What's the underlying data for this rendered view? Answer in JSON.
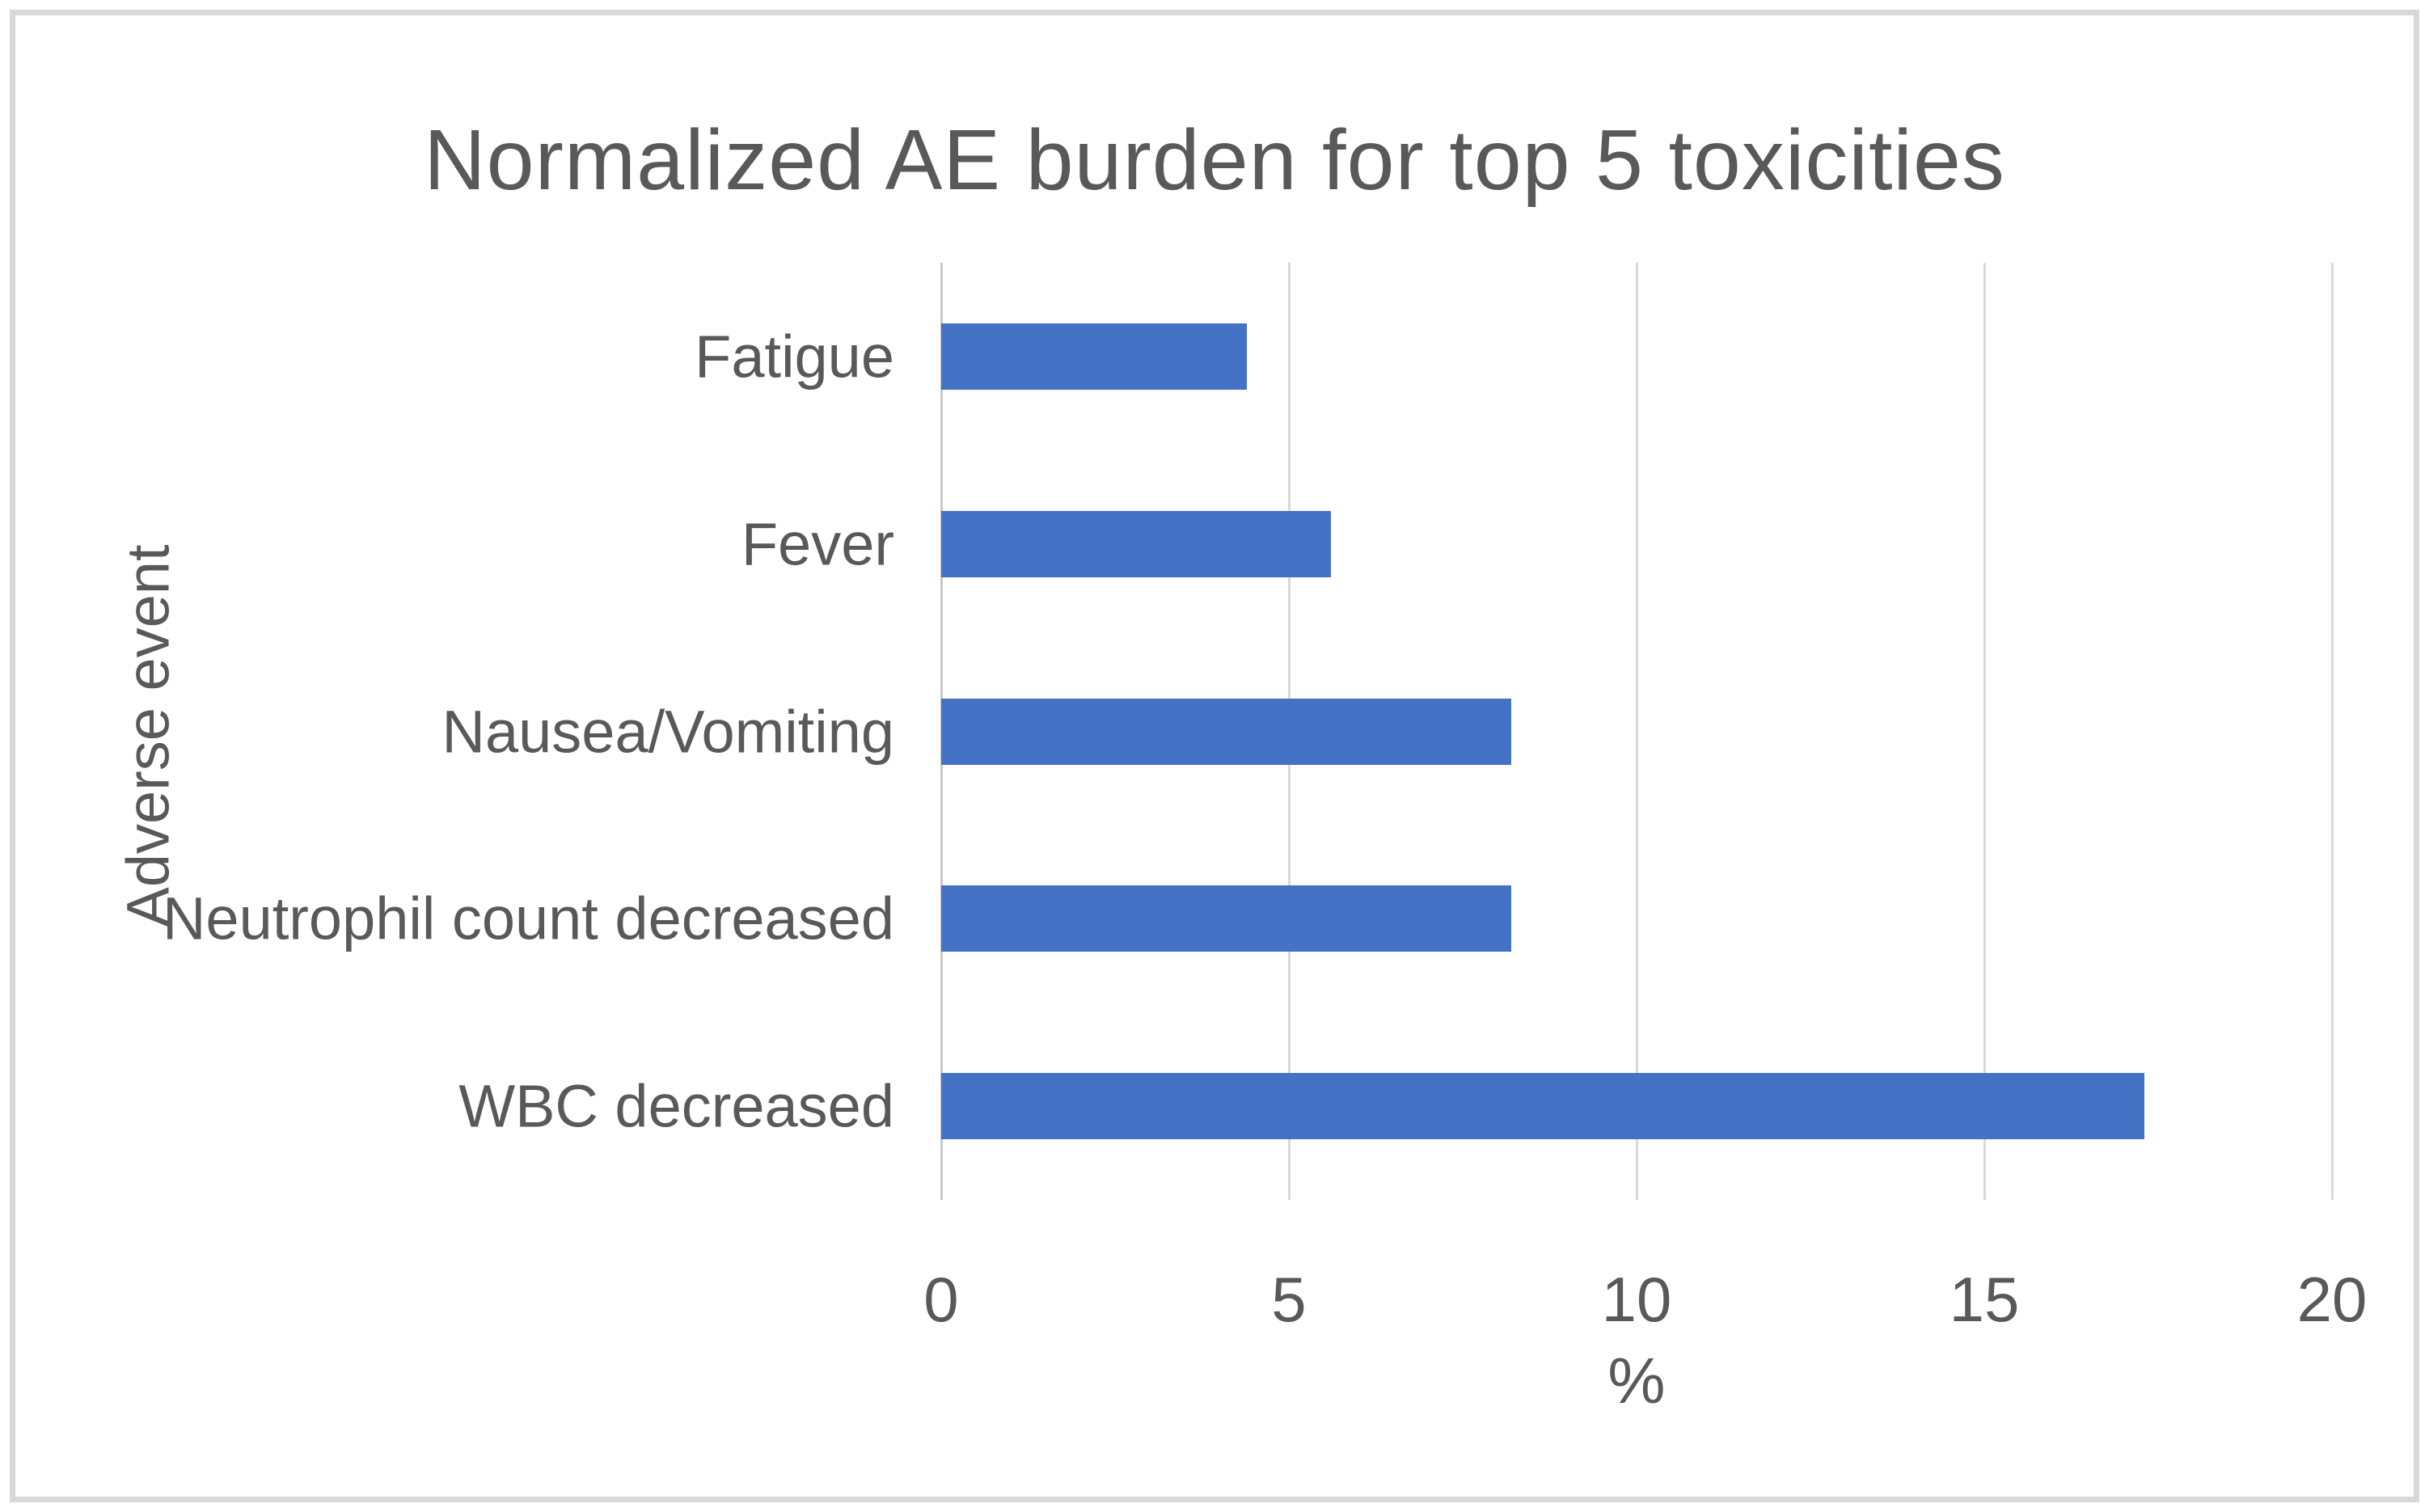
{
  "chart": {
    "title": "Normalized AE burden for top 5 toxicities",
    "xlabel": "%",
    "ylabel": "Adverse event"
  },
  "chart_data": {
    "type": "bar",
    "orientation": "horizontal",
    "title": "Normalized AE burden for top 5 toxicities",
    "xlabel": "%",
    "ylabel": "Adverse event",
    "categories": [
      "Fatigue",
      "Fever",
      "Nausea/Vomiting",
      "Neutrophil count decreased",
      "WBC decreased"
    ],
    "values": [
      4.4,
      5.6,
      8.2,
      8.2,
      17.3
    ],
    "x_ticks": [
      0,
      5,
      10,
      15,
      20
    ],
    "xlim": [
      0,
      20
    ],
    "grid": "vertical-only",
    "legend": "none",
    "colors": {
      "bar": "#4472c4",
      "text": "#595959",
      "gridline": "#d9d9d9",
      "frame_border": "#d8d8d8",
      "background": "#ffffff"
    }
  }
}
